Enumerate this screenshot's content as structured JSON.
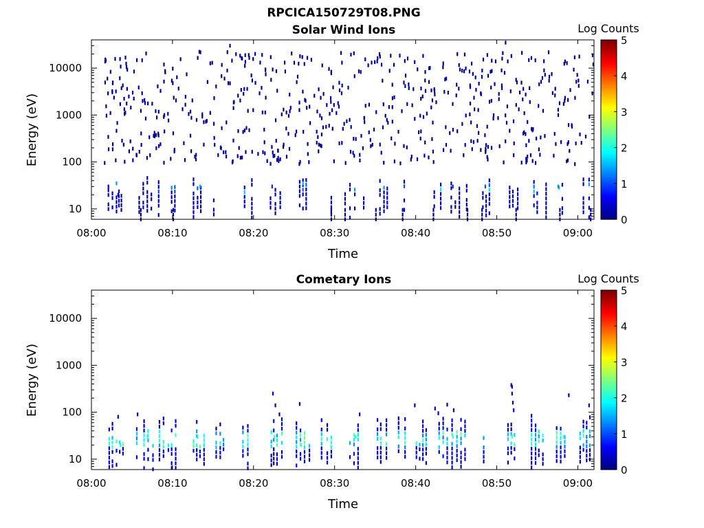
{
  "figure": {
    "title": "RPCICA150729T08.PNG"
  },
  "chart_data": [
    {
      "type": "heatmap",
      "title": "Solar Wind Ions",
      "xlabel": "Time",
      "ylabel": "Energy (eV)",
      "y_scale": "log",
      "ylim": [
        6,
        40000
      ],
      "xlim_minutes": [
        0,
        62
      ],
      "x_ticks": [
        "08:00",
        "08:10",
        "08:20",
        "08:30",
        "08:40",
        "08:50",
        "09:00"
      ],
      "y_ticks": [
        "10",
        "100",
        "1000",
        "10000"
      ],
      "colorbar": {
        "label": "Log Counts",
        "range": [
          0,
          5
        ],
        "ticks": [
          "0",
          "1",
          "2",
          "3",
          "4",
          "5"
        ],
        "colormap": "jet"
      },
      "sample_cells": [
        {
          "t": 2.0,
          "e": 30,
          "v": 0.4
        },
        {
          "t": 3.2,
          "e": 20,
          "v": 0.3
        },
        {
          "t": 13.3,
          "e": 30,
          "v": 1.5
        },
        {
          "t": 22.2,
          "e": 30,
          "v": 0.8
        },
        {
          "t": 26.0,
          "e": 35,
          "v": 1.6
        },
        {
          "t": 44.5,
          "e": 30,
          "v": 0.9
        },
        {
          "t": 48.5,
          "e": 30,
          "v": 1.0
        },
        {
          "t": 57.5,
          "e": 30,
          "v": 1.3
        },
        {
          "t": 5.0,
          "e": 3000,
          "v": 0.1
        },
        {
          "t": 17.0,
          "e": 30000,
          "v": 0.1
        },
        {
          "t": 51.0,
          "e": 35000,
          "v": 0.1
        }
      ]
    },
    {
      "type": "heatmap",
      "title": "Cometary Ions",
      "xlabel": "Time",
      "ylabel": "Energy (eV)",
      "y_scale": "log",
      "ylim": [
        6,
        40000
      ],
      "xlim_minutes": [
        0,
        62
      ],
      "x_ticks": [
        "08:00",
        "08:10",
        "08:20",
        "08:30",
        "08:40",
        "08:50",
        "09:00"
      ],
      "y_ticks": [
        "10",
        "100",
        "1000",
        "10000"
      ],
      "colorbar": {
        "label": "Log Counts",
        "range": [
          0,
          5
        ],
        "ticks": [
          "0",
          "1",
          "2",
          "3",
          "4",
          "5"
        ],
        "colormap": "jet"
      },
      "sample_cells": [
        {
          "t": 3.5,
          "e": 20,
          "v": 1.9
        },
        {
          "t": 6.8,
          "e": 30,
          "v": 2.3
        },
        {
          "t": 9.8,
          "e": 20,
          "v": 1.9
        },
        {
          "t": 13.0,
          "e": 30,
          "v": 1.8
        },
        {
          "t": 22.5,
          "e": 30,
          "v": 2.2
        },
        {
          "t": 25.8,
          "e": 20,
          "v": 2.3
        },
        {
          "t": 32.5,
          "e": 30,
          "v": 2.0
        },
        {
          "t": 44.5,
          "e": 30,
          "v": 2.1
        },
        {
          "t": 51.8,
          "e": 30,
          "v": 2.2
        },
        {
          "t": 54.7,
          "e": 20,
          "v": 1.9
        },
        {
          "t": 58.2,
          "e": 30,
          "v": 1.9
        },
        {
          "t": 51.8,
          "e": 350,
          "v": 0.3
        }
      ]
    }
  ]
}
